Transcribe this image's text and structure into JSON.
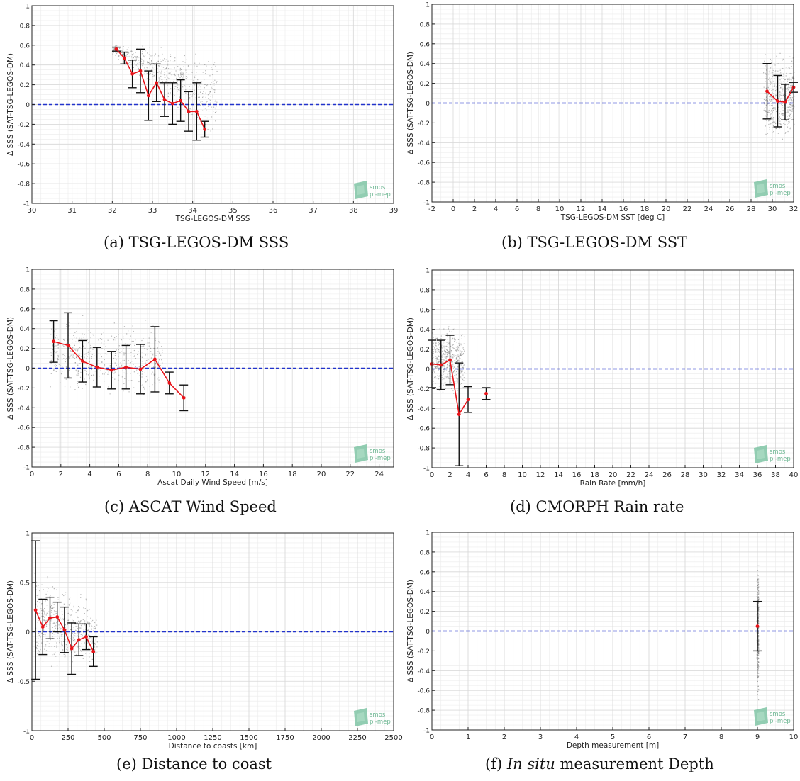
{
  "figure": {
    "ylabel": "Δ SSS (SAT-TSG-LEGOS-DM)",
    "watermark": {
      "line1": "smos",
      "line2": "pi-mep"
    }
  },
  "captions": [
    {
      "prefix": "(a) ",
      "italic": "",
      "text": "TSG-LEGOS-DM SSS"
    },
    {
      "prefix": "(b) ",
      "italic": "",
      "text": "TSG-LEGOS-DM SST"
    },
    {
      "prefix": "(c) ",
      "italic": "",
      "text": "ASCAT Wind Speed"
    },
    {
      "prefix": "(d) ",
      "italic": "",
      "text": "CMORPH Rain rate"
    },
    {
      "prefix": "(e) ",
      "italic": "",
      "text": "Distance to coast"
    },
    {
      "prefix": "(f) ",
      "italic": "In situ",
      "text": " measurement Depth"
    }
  ],
  "chart_data": [
    {
      "type": "scatter",
      "xlabel": "TSG-LEGOS-DM SSS",
      "ylabel": "Δ SSS (SAT-TSG-LEGOS-DM)",
      "xlim": [
        30,
        39
      ],
      "ylim": [
        -1,
        1
      ],
      "xticks": [
        30,
        31,
        32,
        33,
        34,
        35,
        36,
        37,
        38,
        39
      ],
      "yticks": [
        -1,
        -0.8,
        -0.6,
        -0.4,
        -0.2,
        0,
        0.2,
        0.4,
        0.6,
        0.8,
        1
      ],
      "grid": true,
      "zero_line": 0,
      "binned_mean": {
        "x": [
          32.1,
          32.3,
          32.5,
          32.7,
          32.9,
          33.1,
          33.3,
          33.5,
          33.7,
          33.9,
          34.1,
          34.3
        ],
        "mean": [
          0.56,
          0.47,
          0.31,
          0.34,
          0.09,
          0.22,
          0.05,
          0.01,
          0.04,
          -0.07,
          -0.07,
          -0.25
        ],
        "std": [
          0.02,
          0.06,
          0.14,
          0.22,
          0.25,
          0.19,
          0.17,
          0.21,
          0.21,
          0.2,
          0.29,
          0.08
        ]
      },
      "scatter_cloud": {
        "x": [
          32.0,
          34.6
        ],
        "y_top": [
          0.62,
          0.62
        ],
        "y_bottom": [
          0.5,
          -0.45
        ]
      }
    },
    {
      "type": "scatter",
      "xlabel": "TSG-LEGOS-DM SST [deg C]",
      "ylabel": "Δ SSS (SAT-TSG-LEGOS-DM)",
      "xlim": [
        -2,
        32
      ],
      "ylim": [
        -1,
        1
      ],
      "xticks": [
        -2,
        0,
        2,
        4,
        6,
        8,
        10,
        12,
        14,
        16,
        18,
        20,
        22,
        24,
        26,
        28,
        30,
        32
      ],
      "yticks": [
        -1,
        -0.8,
        -0.6,
        -0.4,
        -0.2,
        0,
        0.2,
        0.4,
        0.6,
        0.8,
        1
      ],
      "grid": true,
      "zero_line": 0,
      "binned_mean": {
        "x": [
          29.5,
          30.5,
          31.2,
          32.0
        ],
        "mean": [
          0.12,
          0.02,
          0.01,
          0.16
        ],
        "std": [
          0.28,
          0.26,
          0.18,
          0.05
        ]
      },
      "scatter_cloud": {
        "x": [
          29.2,
          32.0
        ],
        "y_top": [
          0.6,
          0.55
        ],
        "y_bottom": [
          -0.5,
          -0.4
        ]
      }
    },
    {
      "type": "scatter",
      "xlabel": "Ascat Daily Wind Speed [m/s]",
      "ylabel": "Δ SSS (SAT-TSG-LEGOS-DM)",
      "xlim": [
        0,
        25
      ],
      "ylim": [
        -1,
        1
      ],
      "xticks": [
        0,
        2,
        4,
        6,
        8,
        10,
        12,
        14,
        16,
        18,
        20,
        22,
        24
      ],
      "yticks": [
        -1,
        -0.8,
        -0.6,
        -0.4,
        -0.2,
        0,
        0.2,
        0.4,
        0.6,
        0.8,
        1
      ],
      "grid": true,
      "zero_line": 0,
      "binned_mean": {
        "x": [
          1.5,
          2.5,
          3.5,
          4.5,
          5.5,
          6.5,
          7.5,
          8.5,
          9.5,
          10.5
        ],
        "mean": [
          0.27,
          0.23,
          0.07,
          0.01,
          -0.02,
          0.01,
          -0.01,
          0.09,
          -0.15,
          -0.3
        ],
        "std": [
          0.21,
          0.33,
          0.21,
          0.2,
          0.19,
          0.22,
          0.25,
          0.33,
          0.11,
          0.13
        ]
      },
      "scatter_cloud": {
        "x": [
          1.2,
          9.0
        ],
        "y_top": [
          0.6,
          0.5
        ],
        "y_bottom": [
          -0.3,
          -0.4
        ]
      }
    },
    {
      "type": "scatter",
      "xlabel": "Rain Rate [mm/h]",
      "ylabel": "Δ SSS (SAT-TSG-LEGOS-DM)",
      "xlim": [
        0,
        40
      ],
      "ylim": [
        -1,
        1
      ],
      "xticks": [
        0,
        2,
        4,
        6,
        8,
        10,
        12,
        14,
        16,
        18,
        20,
        22,
        24,
        26,
        28,
        30,
        32,
        34,
        36,
        38,
        40
      ],
      "yticks": [
        -1,
        -0.8,
        -0.6,
        -0.4,
        -0.2,
        0,
        0.2,
        0.4,
        0.6,
        0.8,
        1
      ],
      "grid": true,
      "zero_line": 0,
      "binned_mean": {
        "x": [
          0,
          1,
          2,
          3,
          4
        ],
        "mean": [
          0.05,
          0.04,
          0.09,
          -0.46,
          -0.31
        ],
        "std": [
          0.24,
          0.25,
          0.25,
          0.52,
          0.13
        ]
      },
      "isolated_points": [
        {
          "x": 6,
          "mean": -0.25,
          "std": 0.06
        }
      ],
      "scatter_cloud": {
        "x": [
          0,
          3.5
        ],
        "y_top": [
          0.5,
          0.5
        ],
        "y_bottom": [
          -0.3,
          -0.3
        ]
      }
    },
    {
      "type": "scatter",
      "xlabel": "Distance to coasts [km]",
      "ylabel": "Δ SSS (SAT-TSG-LEGOS-DM)",
      "xlim": [
        0,
        2500
      ],
      "ylim": [
        -1,
        1
      ],
      "xticks": [
        0,
        250,
        500,
        750,
        1000,
        1250,
        1500,
        1750,
        2000,
        2250,
        2500
      ],
      "yticks": [
        -1,
        -0.5,
        0,
        0.5,
        1
      ],
      "grid": true,
      "zero_line": 0,
      "binned_mean": {
        "x": [
          25,
          75,
          125,
          175,
          225,
          275,
          325,
          375,
          425
        ],
        "mean": [
          0.22,
          0.05,
          0.14,
          0.15,
          0.02,
          -0.17,
          -0.08,
          -0.05,
          -0.2
        ],
        "std": [
          0.7,
          0.28,
          0.21,
          0.15,
          0.23,
          0.26,
          0.16,
          0.13,
          0.15
        ]
      },
      "scatter_cloud": {
        "x": [
          20,
          450
        ],
        "y_top": [
          0.8,
          0.3
        ],
        "y_bottom": [
          -0.5,
          -0.4
        ]
      }
    },
    {
      "type": "scatter",
      "xlabel": "Depth measurement [m]",
      "ylabel": "Δ SSS (SAT-TSG-LEGOS-DM)",
      "xlim": [
        0,
        10
      ],
      "ylim": [
        -1,
        1
      ],
      "xticks": [
        0,
        1,
        2,
        3,
        4,
        5,
        6,
        7,
        8,
        9,
        10
      ],
      "yticks": [
        -1,
        -0.8,
        -0.6,
        -0.4,
        -0.2,
        0,
        0.2,
        0.4,
        0.6,
        0.8,
        1
      ],
      "grid": true,
      "zero_line": 0,
      "binned_mean": {
        "x": [
          9
        ],
        "mean": [
          0.05
        ],
        "std": [
          0.25
        ]
      },
      "scatter_cloud": {
        "x": [
          9,
          9
        ],
        "y_top": [
          0.8,
          0.8
        ],
        "y_bottom": [
          -0.75,
          -0.75
        ]
      }
    }
  ]
}
